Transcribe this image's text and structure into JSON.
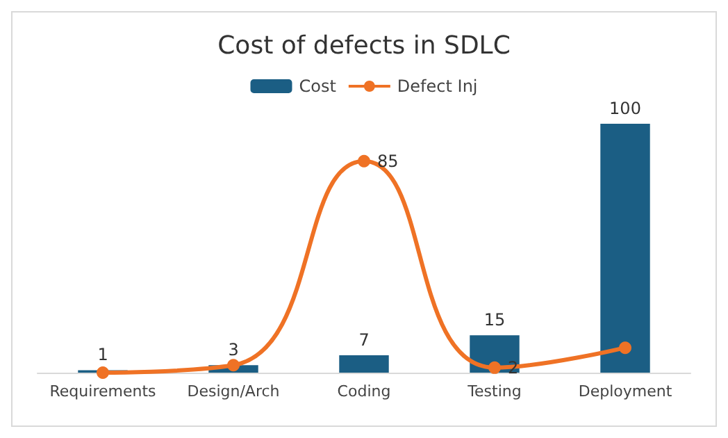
{
  "chart_data": {
    "type": "bar",
    "title": "Cost of defects in SDLC",
    "categories": [
      "Requirements",
      "Design/Arch",
      "Coding",
      "Testing",
      "Deployment"
    ],
    "legend": "top",
    "series": [
      {
        "name": "Cost",
        "color": "#1b5e84",
        "values": [
          1,
          3,
          7,
          15,
          100
        ],
        "value_labels": [
          "1",
          "3",
          "7",
          "15",
          "100"
        ]
      },
      {
        "name": "Defect Inj",
        "type": "line",
        "color": "#ef7225",
        "marker": "circle",
        "values": [
          0,
          3,
          85,
          2,
          10
        ],
        "value_labels": [
          null,
          null,
          "85",
          "2",
          null
        ]
      }
    ]
  }
}
